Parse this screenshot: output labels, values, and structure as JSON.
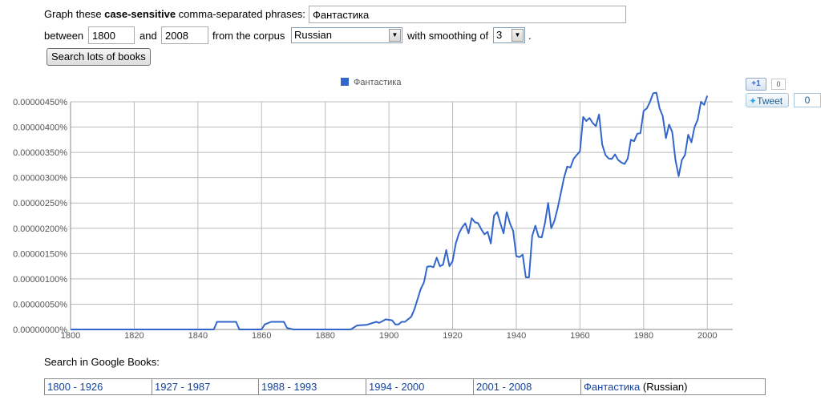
{
  "form": {
    "graph_prefix": "Graph these ",
    "graph_bold": "case-sensitive",
    "graph_suffix": " comma-separated phrases:",
    "phrase_value": "Фантастика",
    "between_label": "between",
    "start_year": "1800",
    "and_label": "and",
    "end_year": "2008",
    "corpus_label": "from the corpus",
    "corpus_value": "Russian",
    "smoothing_label": "with smoothing of",
    "smoothing_value": "3",
    "period": ".",
    "search_button": "Search lots of books"
  },
  "share": {
    "plusone_label": "+1",
    "plusone_count": "0",
    "tweet_label": "Tweet",
    "tweet_count": "0"
  },
  "search_books": {
    "heading": "Search in Google Books:",
    "ranges": [
      "1800 - 1926",
      "1927 - 1987",
      "1988 - 1993",
      "1994 - 2000",
      "2001 - 2008"
    ],
    "term": "Фантастика",
    "term_suffix": " (Russian)"
  },
  "colors": {
    "series": "#3366cc",
    "grid": "#bcbcbc",
    "link": "#15439e"
  },
  "chart_data": {
    "type": "line",
    "legend_position": "top-center",
    "grid": true,
    "xlim": [
      1800,
      2008
    ],
    "ylim": [
      0,
      4.5e-06
    ],
    "x_ticks": [
      1800,
      1820,
      1840,
      1860,
      1880,
      1900,
      1920,
      1940,
      1960,
      1980,
      2000
    ],
    "y_ticks": [
      0,
      5e-07,
      1e-06,
      1.5e-06,
      2e-06,
      2.5e-06,
      3e-06,
      3.5e-06,
      4e-06,
      4.5e-06
    ],
    "y_tick_labels": [
      "0.00000000%",
      "0.00000050%",
      "0.00000100%",
      "0.00000150%",
      "0.00000200%",
      "0.00000250%",
      "0.00000300%",
      "0.00000350%",
      "0.00000400%",
      "0.00000450%"
    ],
    "series": [
      {
        "name": "Фантастика",
        "points": [
          [
            1800,
            0
          ],
          [
            1845,
            0
          ],
          [
            1846,
            1.5e-07
          ],
          [
            1852,
            1.5e-07
          ],
          [
            1853,
            0
          ],
          [
            1860,
            0
          ],
          [
            1861,
            1e-07
          ],
          [
            1863,
            1.5e-07
          ],
          [
            1867,
            1.5e-07
          ],
          [
            1868,
            3e-08
          ],
          [
            1870,
            0
          ],
          [
            1888,
            0
          ],
          [
            1890,
            8e-08
          ],
          [
            1893,
            9e-08
          ],
          [
            1896,
            1.5e-07
          ],
          [
            1897,
            1.3e-07
          ],
          [
            1899,
            2e-07
          ],
          [
            1901,
            1.8e-07
          ],
          [
            1902,
            1e-07
          ],
          [
            1903,
            1e-07
          ],
          [
            1904,
            1.5e-07
          ],
          [
            1905,
            1.5e-07
          ],
          [
            1906,
            2e-07
          ],
          [
            1907,
            2.5e-07
          ],
          [
            1908,
            4e-07
          ],
          [
            1909,
            6e-07
          ],
          [
            1910,
            8e-07
          ],
          [
            1911,
            9.3e-07
          ],
          [
            1912,
            1.24e-06
          ],
          [
            1913,
            1.25e-06
          ],
          [
            1914,
            1.23e-06
          ],
          [
            1915,
            1.42e-06
          ],
          [
            1916,
            1.25e-06
          ],
          [
            1917,
            1.28e-06
          ],
          [
            1918,
            1.57e-06
          ],
          [
            1919,
            1.25e-06
          ],
          [
            1920,
            1.35e-06
          ],
          [
            1921,
            1.7e-06
          ],
          [
            1922,
            1.9e-06
          ],
          [
            1923,
            2.02e-06
          ],
          [
            1924,
            2.1e-06
          ],
          [
            1925,
            1.9e-06
          ],
          [
            1926,
            2.2e-06
          ],
          [
            1927,
            2.12e-06
          ],
          [
            1928,
            2.1e-06
          ],
          [
            1929,
            1.98e-06
          ],
          [
            1930,
            1.88e-06
          ],
          [
            1931,
            1.93e-06
          ],
          [
            1932,
            1.7e-06
          ],
          [
            1933,
            2.25e-06
          ],
          [
            1934,
            2.32e-06
          ],
          [
            1935,
            2.1e-06
          ],
          [
            1936,
            1.9e-06
          ],
          [
            1937,
            2.32e-06
          ],
          [
            1938,
            2.1e-06
          ],
          [
            1939,
            1.95e-06
          ],
          [
            1940,
            1.45e-06
          ],
          [
            1941,
            1.43e-06
          ],
          [
            1942,
            1.48e-06
          ],
          [
            1943,
            1.03e-06
          ],
          [
            1944,
            1.03e-06
          ],
          [
            1945,
            1.85e-06
          ],
          [
            1946,
            2.05e-06
          ],
          [
            1947,
            1.83e-06
          ],
          [
            1948,
            1.82e-06
          ],
          [
            1949,
            2.1e-06
          ],
          [
            1950,
            2.5e-06
          ],
          [
            1951,
            2e-06
          ],
          [
            1952,
            2.15e-06
          ],
          [
            1953,
            2.4e-06
          ],
          [
            1954,
            2.7e-06
          ],
          [
            1955,
            3e-06
          ],
          [
            1956,
            3.22e-06
          ],
          [
            1957,
            3.2e-06
          ],
          [
            1958,
            3.37e-06
          ],
          [
            1959,
            3.45e-06
          ],
          [
            1960,
            3.52e-06
          ],
          [
            1961,
            4.2e-06
          ],
          [
            1962,
            4.12e-06
          ],
          [
            1963,
            4.18e-06
          ],
          [
            1964,
            4.08e-06
          ],
          [
            1965,
            4.02e-06
          ],
          [
            1966,
            4.25e-06
          ],
          [
            1967,
            3.65e-06
          ],
          [
            1968,
            3.45e-06
          ],
          [
            1969,
            3.38e-06
          ],
          [
            1970,
            3.37e-06
          ],
          [
            1971,
            3.46e-06
          ],
          [
            1972,
            3.35e-06
          ],
          [
            1973,
            3.3e-06
          ],
          [
            1974,
            3.27e-06
          ],
          [
            1975,
            3.38e-06
          ],
          [
            1976,
            3.75e-06
          ],
          [
            1977,
            3.72e-06
          ],
          [
            1978,
            3.87e-06
          ],
          [
            1979,
            3.88e-06
          ],
          [
            1980,
            4.32e-06
          ],
          [
            1981,
            4.37e-06
          ],
          [
            1982,
            4.5e-06
          ],
          [
            1983,
            4.67e-06
          ],
          [
            1984,
            4.68e-06
          ],
          [
            1985,
            4.37e-06
          ],
          [
            1986,
            4.22e-06
          ],
          [
            1987,
            3.78e-06
          ],
          [
            1988,
            4.05e-06
          ],
          [
            1989,
            3.9e-06
          ],
          [
            1990,
            3.35e-06
          ],
          [
            1991,
            3.03e-06
          ],
          [
            1992,
            3.35e-06
          ],
          [
            1993,
            3.45e-06
          ],
          [
            1994,
            3.85e-06
          ],
          [
            1995,
            3.7e-06
          ],
          [
            1996,
            4e-06
          ],
          [
            1997,
            4.15e-06
          ],
          [
            1998,
            4.5e-06
          ],
          [
            1999,
            4.44e-06
          ],
          [
            2000,
            4.62e-06
          ]
        ]
      }
    ]
  }
}
